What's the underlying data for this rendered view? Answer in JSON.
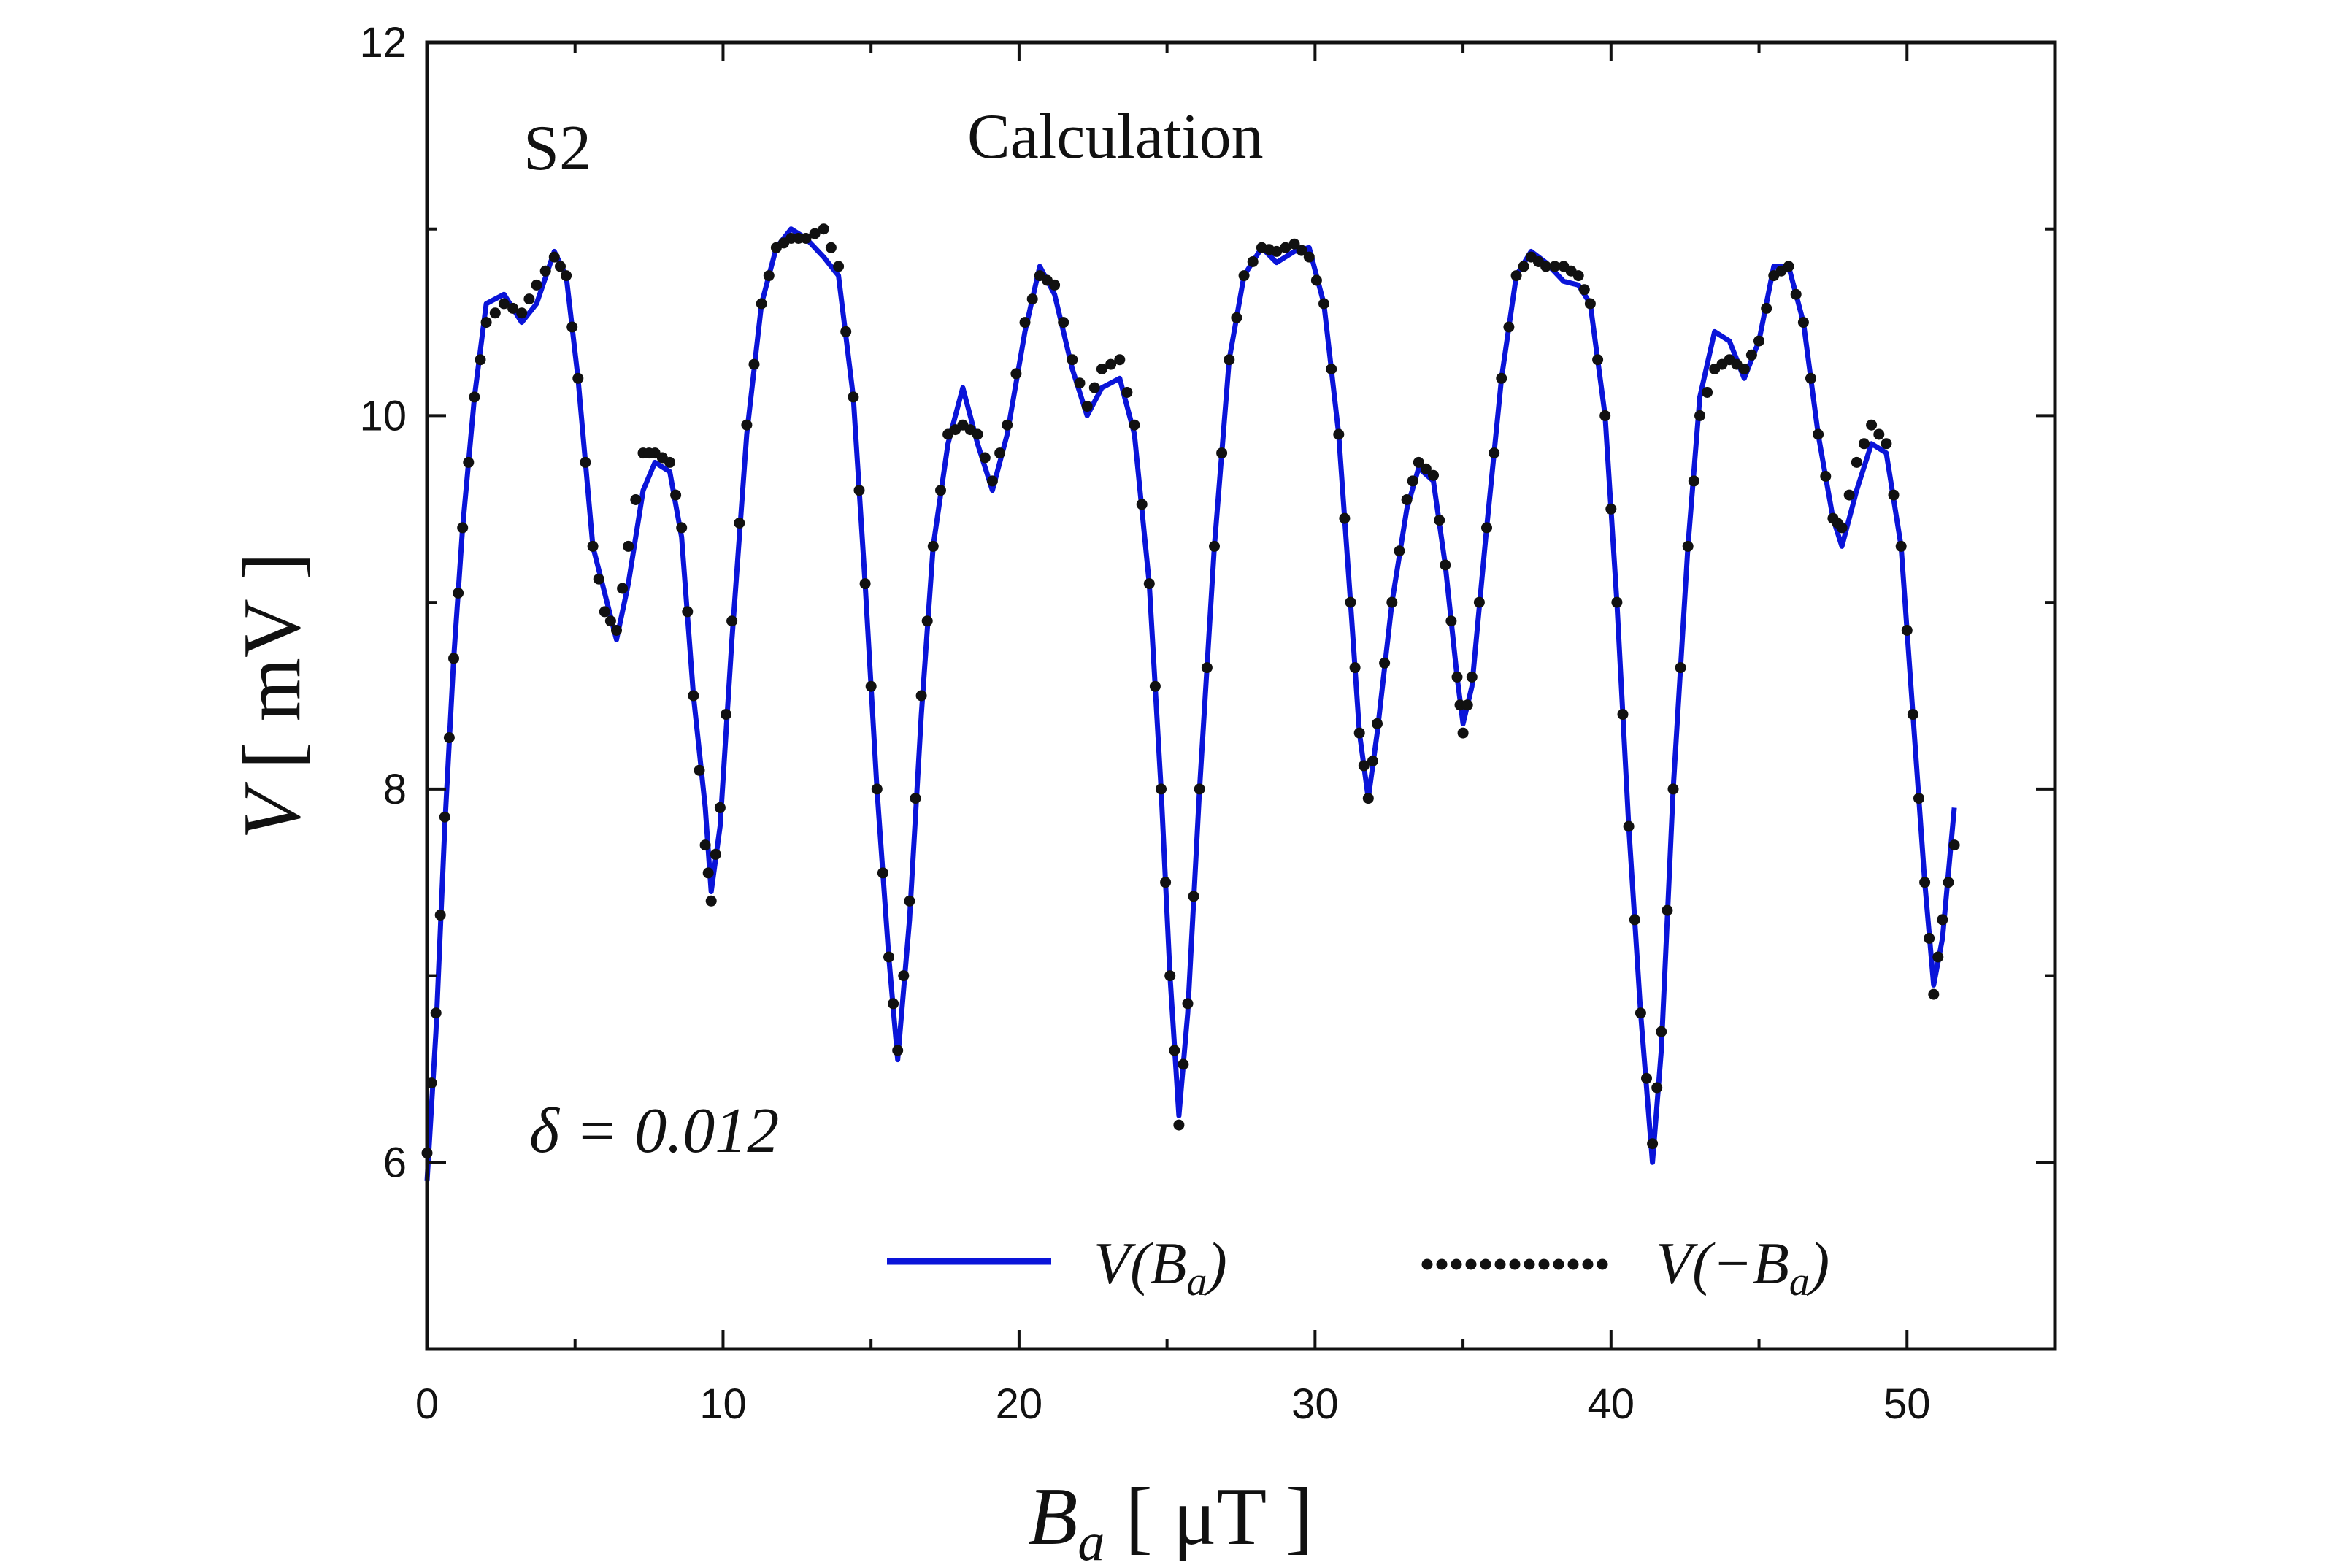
{
  "chart_data": {
    "type": "line",
    "panel_label": "S2",
    "title": "Calculation",
    "annotation": "δ = 0.012",
    "xlabel": {
      "main": "B",
      "sub": "a",
      "unit": "μT"
    },
    "ylabel": {
      "main": "V",
      "unit": "mV"
    },
    "xlim": [
      0,
      55
    ],
    "ylim": [
      5,
      12
    ],
    "x_ticks": [
      0,
      10,
      20,
      30,
      40,
      50
    ],
    "y_ticks": [
      6,
      8,
      10,
      12
    ],
    "x_tick_labels": [
      "0",
      "10",
      "20",
      "30",
      "40",
      "50"
    ],
    "y_tick_labels": [
      "6",
      "8",
      "10",
      "12"
    ],
    "grid": false,
    "legend_position": "bottom-right",
    "colors": {
      "series_1": "#0a14d9",
      "series_2": "#111111",
      "axes": "#111111"
    },
    "series": [
      {
        "name": "V(B_a)",
        "legend_label": {
          "pre": "V(",
          "main": "B",
          "sub": "a",
          "post": ")"
        },
        "style": "solid",
        "points": [
          [
            0,
            5.9
          ],
          [
            0.3,
            6.7
          ],
          [
            0.6,
            7.8
          ],
          [
            0.9,
            8.7
          ],
          [
            1.2,
            9.4
          ],
          [
            1.6,
            10.1
          ],
          [
            2.0,
            10.6
          ],
          [
            2.6,
            10.65
          ],
          [
            3.2,
            10.5
          ],
          [
            3.7,
            10.6
          ],
          [
            4.3,
            10.88
          ],
          [
            4.7,
            10.75
          ],
          [
            5.1,
            10.2
          ],
          [
            5.6,
            9.3
          ],
          [
            6.0,
            9.05
          ],
          [
            6.4,
            8.8
          ],
          [
            6.8,
            9.1
          ],
          [
            7.3,
            9.6
          ],
          [
            7.7,
            9.75
          ],
          [
            8.2,
            9.7
          ],
          [
            8.6,
            9.35
          ],
          [
            9.0,
            8.5
          ],
          [
            9.4,
            7.9
          ],
          [
            9.6,
            7.45
          ],
          [
            9.9,
            7.8
          ],
          [
            10.3,
            8.8
          ],
          [
            10.8,
            9.9
          ],
          [
            11.3,
            10.6
          ],
          [
            11.8,
            10.9
          ],
          [
            12.3,
            11.0
          ],
          [
            12.8,
            10.95
          ],
          [
            13.4,
            10.85
          ],
          [
            13.9,
            10.75
          ],
          [
            14.4,
            10.1
          ],
          [
            14.8,
            9.1
          ],
          [
            15.2,
            8.0
          ],
          [
            15.6,
            7.1
          ],
          [
            15.9,
            6.55
          ],
          [
            16.3,
            7.3
          ],
          [
            16.7,
            8.4
          ],
          [
            17.1,
            9.3
          ],
          [
            17.6,
            9.85
          ],
          [
            18.1,
            10.15
          ],
          [
            18.6,
            9.85
          ],
          [
            19.1,
            9.6
          ],
          [
            19.6,
            9.9
          ],
          [
            20.2,
            10.45
          ],
          [
            20.7,
            10.8
          ],
          [
            21.2,
            10.65
          ],
          [
            21.8,
            10.25
          ],
          [
            22.3,
            10.0
          ],
          [
            22.8,
            10.15
          ],
          [
            23.4,
            10.2
          ],
          [
            23.9,
            9.9
          ],
          [
            24.4,
            9.1
          ],
          [
            24.8,
            8.0
          ],
          [
            25.1,
            7.0
          ],
          [
            25.4,
            6.25
          ],
          [
            25.7,
            6.8
          ],
          [
            26.1,
            8.0
          ],
          [
            26.6,
            9.3
          ],
          [
            27.1,
            10.3
          ],
          [
            27.6,
            10.75
          ],
          [
            28.2,
            10.9
          ],
          [
            28.7,
            10.82
          ],
          [
            29.3,
            10.88
          ],
          [
            29.8,
            10.9
          ],
          [
            30.3,
            10.6
          ],
          [
            30.8,
            9.9
          ],
          [
            31.2,
            9.0
          ],
          [
            31.5,
            8.3
          ],
          [
            31.8,
            7.95
          ],
          [
            32.1,
            8.3
          ],
          [
            32.6,
            9.0
          ],
          [
            33.1,
            9.5
          ],
          [
            33.5,
            9.72
          ],
          [
            34.0,
            9.65
          ],
          [
            34.4,
            9.2
          ],
          [
            34.8,
            8.6
          ],
          [
            35.0,
            8.35
          ],
          [
            35.3,
            8.55
          ],
          [
            35.8,
            9.4
          ],
          [
            36.3,
            10.2
          ],
          [
            36.8,
            10.75
          ],
          [
            37.3,
            10.88
          ],
          [
            37.8,
            10.82
          ],
          [
            38.4,
            10.72
          ],
          [
            38.9,
            10.7
          ],
          [
            39.3,
            10.6
          ],
          [
            39.8,
            10.0
          ],
          [
            40.2,
            9.0
          ],
          [
            40.6,
            7.8
          ],
          [
            41.0,
            6.8
          ],
          [
            41.4,
            6.0
          ],
          [
            41.7,
            6.6
          ],
          [
            42.1,
            8.0
          ],
          [
            42.6,
            9.3
          ],
          [
            43.0,
            10.1
          ],
          [
            43.5,
            10.45
          ],
          [
            44.0,
            10.4
          ],
          [
            44.5,
            10.2
          ],
          [
            45.0,
            10.4
          ],
          [
            45.5,
            10.8
          ],
          [
            46.0,
            10.8
          ],
          [
            46.5,
            10.5
          ],
          [
            47.0,
            9.9
          ],
          [
            47.5,
            9.45
          ],
          [
            47.8,
            9.3
          ],
          [
            48.3,
            9.6
          ],
          [
            48.8,
            9.85
          ],
          [
            49.3,
            9.8
          ],
          [
            49.8,
            9.3
          ],
          [
            50.2,
            8.4
          ],
          [
            50.6,
            7.5
          ],
          [
            50.9,
            6.95
          ],
          [
            51.2,
            7.2
          ],
          [
            51.6,
            7.9
          ]
        ]
      },
      {
        "name": "V(-B_a)",
        "legend_label": {
          "pre": "V(−",
          "main": "B",
          "sub": "a",
          "post": ")"
        },
        "style": "dotted",
        "points": [
          [
            0,
            6.05
          ],
          [
            0.3,
            6.8
          ],
          [
            0.6,
            7.85
          ],
          [
            0.9,
            8.7
          ],
          [
            1.2,
            9.4
          ],
          [
            1.6,
            10.1
          ],
          [
            2.0,
            10.5
          ],
          [
            2.6,
            10.6
          ],
          [
            3.2,
            10.55
          ],
          [
            3.7,
            10.7
          ],
          [
            4.3,
            10.85
          ],
          [
            4.7,
            10.75
          ],
          [
            5.1,
            10.2
          ],
          [
            5.6,
            9.3
          ],
          [
            6.0,
            8.95
          ],
          [
            6.4,
            8.85
          ],
          [
            6.8,
            9.3
          ],
          [
            7.3,
            9.8
          ],
          [
            7.7,
            9.8
          ],
          [
            8.2,
            9.75
          ],
          [
            8.6,
            9.4
          ],
          [
            9.0,
            8.5
          ],
          [
            9.4,
            7.7
          ],
          [
            9.6,
            7.4
          ],
          [
            9.9,
            7.9
          ],
          [
            10.3,
            8.9
          ],
          [
            10.8,
            9.95
          ],
          [
            11.3,
            10.6
          ],
          [
            11.8,
            10.9
          ],
          [
            12.3,
            10.95
          ],
          [
            12.8,
            10.95
          ],
          [
            13.4,
            11.0
          ],
          [
            13.9,
            10.8
          ],
          [
            14.4,
            10.1
          ],
          [
            14.8,
            9.1
          ],
          [
            15.2,
            8.0
          ],
          [
            15.6,
            7.1
          ],
          [
            15.9,
            6.6
          ],
          [
            16.3,
            7.4
          ],
          [
            16.7,
            8.5
          ],
          [
            17.1,
            9.3
          ],
          [
            17.6,
            9.9
          ],
          [
            18.1,
            9.95
          ],
          [
            18.6,
            9.9
          ],
          [
            19.1,
            9.65
          ],
          [
            19.6,
            9.95
          ],
          [
            20.2,
            10.5
          ],
          [
            20.7,
            10.75
          ],
          [
            21.2,
            10.7
          ],
          [
            21.8,
            10.3
          ],
          [
            22.3,
            10.05
          ],
          [
            22.8,
            10.25
          ],
          [
            23.4,
            10.3
          ],
          [
            23.9,
            9.95
          ],
          [
            24.4,
            9.1
          ],
          [
            24.8,
            8.0
          ],
          [
            25.1,
            7.0
          ],
          [
            25.4,
            6.2
          ],
          [
            25.7,
            6.85
          ],
          [
            26.1,
            8.0
          ],
          [
            26.6,
            9.3
          ],
          [
            27.1,
            10.3
          ],
          [
            27.6,
            10.75
          ],
          [
            28.2,
            10.9
          ],
          [
            28.7,
            10.88
          ],
          [
            29.3,
            10.92
          ],
          [
            29.8,
            10.85
          ],
          [
            30.3,
            10.6
          ],
          [
            30.8,
            9.9
          ],
          [
            31.2,
            9.0
          ],
          [
            31.5,
            8.3
          ],
          [
            31.8,
            7.95
          ],
          [
            32.1,
            8.35
          ],
          [
            32.6,
            9.0
          ],
          [
            33.1,
            9.55
          ],
          [
            33.5,
            9.75
          ],
          [
            34.0,
            9.68
          ],
          [
            34.4,
            9.2
          ],
          [
            34.8,
            8.6
          ],
          [
            35.0,
            8.3
          ],
          [
            35.3,
            8.6
          ],
          [
            35.8,
            9.4
          ],
          [
            36.3,
            10.2
          ],
          [
            36.8,
            10.75
          ],
          [
            37.3,
            10.85
          ],
          [
            37.8,
            10.8
          ],
          [
            38.4,
            10.8
          ],
          [
            38.9,
            10.75
          ],
          [
            39.3,
            10.6
          ],
          [
            39.8,
            10.0
          ],
          [
            40.2,
            9.0
          ],
          [
            40.6,
            7.8
          ],
          [
            41.0,
            6.8
          ],
          [
            41.4,
            6.1
          ],
          [
            41.7,
            6.7
          ],
          [
            42.1,
            8.0
          ],
          [
            42.6,
            9.3
          ],
          [
            43.0,
            10.0
          ],
          [
            43.5,
            10.25
          ],
          [
            44.0,
            10.3
          ],
          [
            44.5,
            10.25
          ],
          [
            45.0,
            10.4
          ],
          [
            45.5,
            10.75
          ],
          [
            46.0,
            10.8
          ],
          [
            46.5,
            10.5
          ],
          [
            47.0,
            9.9
          ],
          [
            47.5,
            9.45
          ],
          [
            47.8,
            9.4
          ],
          [
            48.3,
            9.75
          ],
          [
            48.8,
            9.95
          ],
          [
            49.3,
            9.85
          ],
          [
            49.8,
            9.3
          ],
          [
            50.2,
            8.4
          ],
          [
            50.6,
            7.5
          ],
          [
            50.9,
            6.9
          ],
          [
            51.2,
            7.3
          ],
          [
            51.6,
            7.7
          ]
        ]
      }
    ]
  }
}
